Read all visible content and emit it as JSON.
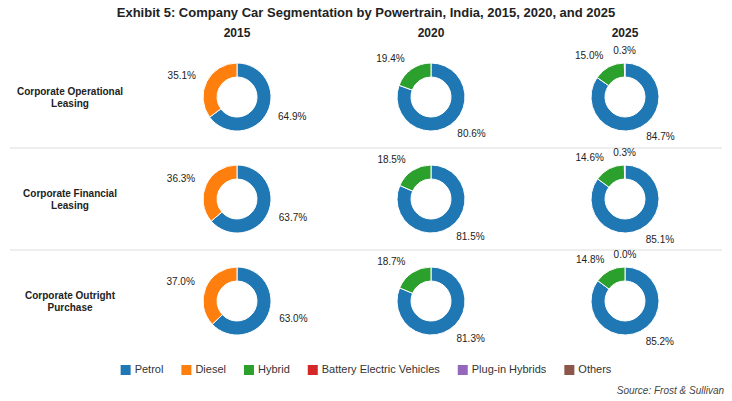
{
  "chart_data": {
    "type": "pie",
    "title": "Exhibit 5: Company Car Segmentation by Powertrain, India, 2015, 2020, and 2025",
    "annotations": [
      "Source: Frost & Sullivan"
    ],
    "columns": [
      "2015",
      "2020",
      "2025"
    ],
    "rows": [
      "Corporate Operational\nLeasing",
      "Corporate Financial\nLeasing",
      "Corporate Outright\nPurchase"
    ],
    "categories": [
      "Petrol",
      "Diesel",
      "Hybrid",
      "Battery Electric Vehicles",
      "Plug-in Hybrids",
      "Others"
    ],
    "values": [
      [
        [
          64.9,
          35.1,
          0.0,
          0.0,
          0.0,
          0.0
        ],
        [
          80.6,
          0.0,
          19.4,
          0.0,
          0.0,
          0.0
        ],
        [
          84.7,
          0.0,
          15.0,
          0.0,
          0.3,
          0.0
        ]
      ],
      [
        [
          63.7,
          36.3,
          0.0,
          0.0,
          0.0,
          0.0
        ],
        [
          81.5,
          0.0,
          18.5,
          0.0,
          0.0,
          0.0
        ],
        [
          85.1,
          0.0,
          14.6,
          0.0,
          0.3,
          0.0
        ]
      ],
      [
        [
          63.0,
          37.0,
          0.0,
          0.0,
          0.0,
          0.0
        ],
        [
          81.3,
          0.0,
          18.7,
          0.0,
          0.0,
          0.0
        ],
        [
          85.2,
          0.0,
          14.8,
          0.0,
          0.0,
          0.0
        ]
      ]
    ],
    "value_labels": [
      [
        [
          "64.9%",
          "35.1%",
          null,
          null,
          null,
          null
        ],
        [
          "80.6%",
          null,
          "19.4%",
          null,
          null,
          null
        ],
        [
          "84.7%",
          null,
          "15.0%",
          null,
          "0.3%",
          null
        ]
      ],
      [
        [
          "63.7%",
          "36.3%",
          null,
          null,
          null,
          null
        ],
        [
          "81.5%",
          null,
          "18.5%",
          null,
          null,
          null
        ],
        [
          "85.1%",
          null,
          "14.6%",
          null,
          "0.3%",
          null
        ]
      ],
      [
        [
          "63.0%",
          "37.0%",
          null,
          null,
          null,
          null
        ],
        [
          "81.3%",
          null,
          "18.7%",
          null,
          null,
          null
        ],
        [
          "85.2%",
          null,
          "14.8%",
          null,
          "0.0%",
          null
        ]
      ]
    ],
    "data_labels": true,
    "legend": "bottom"
  }
}
